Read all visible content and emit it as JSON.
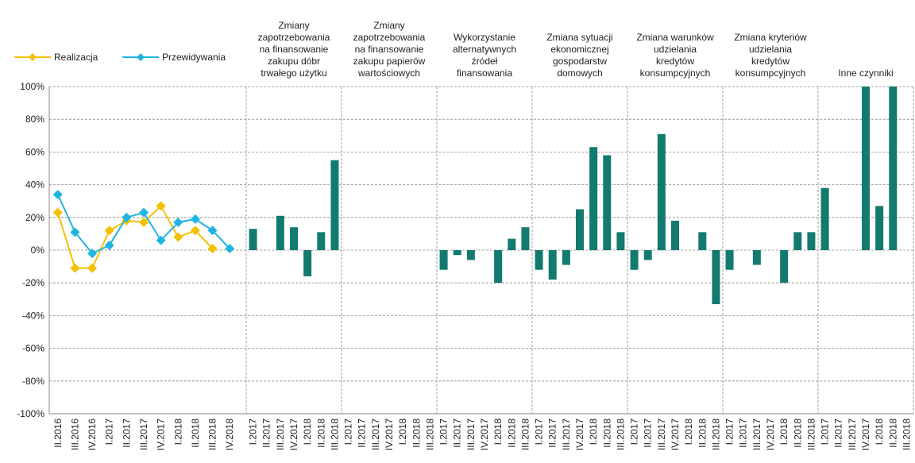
{
  "chart_data": [
    {
      "type": "line",
      "categories": [
        "II.2016",
        "III.2016",
        "IV.2016",
        "I.2017",
        "II.2017",
        "III.2017",
        "IV.2017",
        "I.2018",
        "II.2018",
        "III.2018",
        "IV.2018"
      ],
      "series": [
        {
          "name": "Realizacja",
          "color": "#f5c000",
          "values": [
            23,
            -11,
            -11,
            12,
            18,
            17,
            27,
            8,
            12,
            1,
            null
          ]
        },
        {
          "name": "Przewidywania",
          "color": "#1fb5e3",
          "values": [
            34,
            11,
            -2,
            3,
            20,
            23,
            6,
            17,
            19,
            12,
            1
          ]
        }
      ],
      "ylim": [
        -100,
        100
      ],
      "yticks": [
        {
          "value": -100,
          "label": "-100%"
        },
        {
          "value": -80,
          "label": "-80%"
        },
        {
          "value": -60,
          "label": "-60%"
        },
        {
          "value": -40,
          "label": "-40%"
        },
        {
          "value": -20,
          "label": "-20%"
        },
        {
          "value": 0,
          "label": "0%"
        },
        {
          "value": 20,
          "label": "20%"
        },
        {
          "value": 40,
          "label": "40%"
        },
        {
          "value": 60,
          "label": "60%"
        },
        {
          "value": 80,
          "label": "80%"
        },
        {
          "value": 100,
          "label": "100%"
        }
      ],
      "grid": true,
      "legend": "top-left"
    },
    {
      "type": "bar",
      "title": [
        "Zmiany",
        "zapotrzebowania",
        "na finansowanie",
        "zakupu dóbr",
        "trwałego użytku"
      ],
      "categories": [
        "I.2017",
        "II.2017",
        "III.2017",
        "IV.2017",
        "I.2018",
        "II.2018",
        "III.2018"
      ],
      "values": [
        13,
        0,
        21,
        14,
        -16,
        11,
        55
      ],
      "color": "#137a6f",
      "ylim": [
        -100,
        100
      ]
    },
    {
      "type": "bar",
      "title": [
        "Zmiany",
        "zapotrzebowania",
        "na finansowanie",
        "zakupu papierów",
        "wartościowych"
      ],
      "categories": [
        "I.2017",
        "II.2017",
        "III.2017",
        "IV.2017",
        "I.2018",
        "II.2018",
        "III.2018"
      ],
      "values": [
        0,
        0,
        0,
        0,
        0,
        0,
        0
      ],
      "color": "#137a6f",
      "ylim": [
        -100,
        100
      ]
    },
    {
      "type": "bar",
      "title": [
        "Wykorzystanie",
        "alternatywnych",
        "źródeł",
        "finansowania"
      ],
      "categories": [
        "I.2017",
        "II.2017",
        "III.2017",
        "IV.2017",
        "I.2018",
        "II.2018",
        "III.2018"
      ],
      "values": [
        -12,
        -3,
        -6,
        0,
        -20,
        7,
        14
      ],
      "color": "#137a6f",
      "ylim": [
        -100,
        100
      ]
    },
    {
      "type": "bar",
      "title": [
        "Zmiana sytuacji",
        "ekonomicznej",
        "gospodarstw",
        "domowych"
      ],
      "categories": [
        "I.2017",
        "II.2017",
        "III.2017",
        "IV.2017",
        "I.2018",
        "II.2018",
        "III.2018"
      ],
      "values": [
        -12,
        -18,
        -9,
        25,
        63,
        58,
        11
      ],
      "color": "#137a6f",
      "ylim": [
        -100,
        100
      ]
    },
    {
      "type": "bar",
      "title": [
        "Zmiana warunków",
        "udzielania",
        "kredytów",
        "konsumpcyjnych"
      ],
      "categories": [
        "I.2017",
        "II.2017",
        "III.2017",
        "IV.2017",
        "I.2018",
        "II.2018",
        "III.2018"
      ],
      "values": [
        -12,
        -6,
        71,
        18,
        0,
        11,
        -33
      ],
      "color": "#137a6f",
      "ylim": [
        -100,
        100
      ]
    },
    {
      "type": "bar",
      "title": [
        "Zmiana kryteriów",
        "udzielania",
        "kredytów",
        "konsumpcyjnych"
      ],
      "categories": [
        "I.2017",
        "II.2017",
        "III.2017",
        "IV.2017",
        "I.2018",
        "II.2018",
        "III.2018"
      ],
      "values": [
        -12,
        0,
        -9,
        0,
        -20,
        11,
        11
      ],
      "color": "#137a6f",
      "ylim": [
        -100,
        100
      ]
    },
    {
      "type": "bar",
      "title": [
        "Inne czynniki"
      ],
      "categories": [
        "I.2017",
        "II.2017",
        "III.2017",
        "IV.2017",
        "I.2018",
        "II.2018",
        "III.2018"
      ],
      "values": [
        38,
        0,
        0,
        100,
        27,
        100,
        0
      ],
      "color": "#137a6f",
      "ylim": [
        -100,
        100
      ]
    }
  ]
}
